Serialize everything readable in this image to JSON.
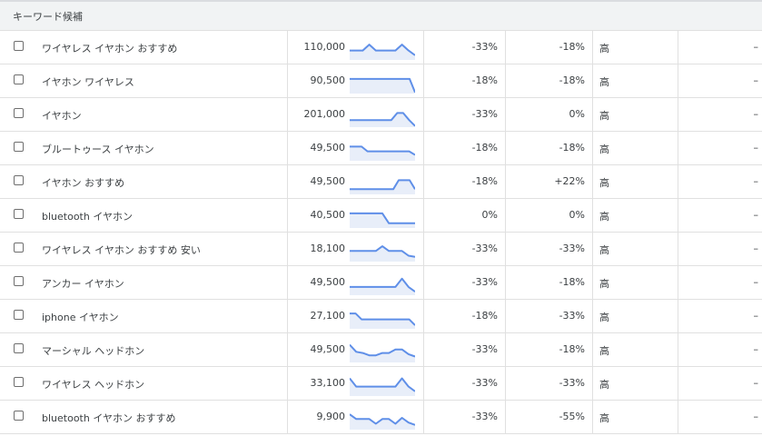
{
  "header": {
    "title": "キーワード候補"
  },
  "colors": {
    "spark_line": "#5f8fe8",
    "spark_fill": "#e8eef9"
  },
  "rows": [
    {
      "keyword": "ワイヤレス イヤホン おすすめ",
      "volume": "110,000",
      "trend": [
        60,
        60,
        60,
        35,
        60,
        60,
        60,
        60,
        35,
        60,
        80
      ],
      "change_3m": "-33%",
      "change_yoy": "-18%",
      "competition": "高",
      "extra": "–"
    },
    {
      "keyword": "イヤホン ワイヤレス",
      "volume": "90,500",
      "trend": [
        38,
        38,
        38,
        38,
        38,
        38,
        38,
        38,
        38,
        38,
        38,
        38,
        95
      ],
      "change_3m": "-18%",
      "change_yoy": "-18%",
      "competition": "高",
      "extra": "–"
    },
    {
      "keyword": "イヤホン",
      "volume": "201,000",
      "trend": [
        70,
        70,
        70,
        70,
        70,
        70,
        70,
        70,
        40,
        40,
        70,
        95
      ],
      "change_3m": "-33%",
      "change_yoy": "0%",
      "competition": "高",
      "extra": "–"
    },
    {
      "keyword": "ブルートゥース イヤホン",
      "volume": "49,500",
      "trend": [
        40,
        40,
        40,
        60,
        60,
        60,
        60,
        60,
        60,
        60,
        60,
        75
      ],
      "change_3m": "-18%",
      "change_yoy": "-18%",
      "competition": "高",
      "extra": "–"
    },
    {
      "keyword": "イヤホン おすすめ",
      "volume": "49,500",
      "trend": [
        78,
        78,
        78,
        78,
        78,
        78,
        78,
        78,
        78,
        40,
        40,
        40,
        78
      ],
      "change_3m": "-18%",
      "change_yoy": "+22%",
      "competition": "高",
      "extra": "–"
    },
    {
      "keyword": "bluetooth イヤホン",
      "volume": "40,500",
      "trend": [
        38,
        38,
        38,
        38,
        38,
        38,
        80,
        80,
        80,
        80,
        80
      ],
      "change_3m": "0%",
      "change_yoy": "0%",
      "competition": "高",
      "extra": "–"
    },
    {
      "keyword": "ワイヤレス イヤホン おすすめ 安い",
      "volume": "18,100",
      "trend": [
        55,
        55,
        55,
        55,
        55,
        35,
        55,
        55,
        55,
        75,
        80
      ],
      "change_3m": "-33%",
      "change_yoy": "-33%",
      "competition": "高",
      "extra": "–"
    },
    {
      "keyword": "アンカー イヤホン",
      "volume": "49,500",
      "trend": [
        65,
        65,
        65,
        65,
        65,
        65,
        65,
        65,
        30,
        65,
        85
      ],
      "change_3m": "-33%",
      "change_yoy": "-18%",
      "competition": "高",
      "extra": "–"
    },
    {
      "keyword": "iphone イヤホン",
      "volume": "27,100",
      "trend": [
        35,
        35,
        60,
        60,
        60,
        60,
        60,
        60,
        60,
        60,
        60,
        85
      ],
      "change_3m": "-18%",
      "change_yoy": "-33%",
      "competition": "高",
      "extra": "–"
    },
    {
      "keyword": "マーシャル ヘッドホン",
      "volume": "49,500",
      "trend": [
        25,
        55,
        60,
        70,
        70,
        60,
        60,
        45,
        45,
        65,
        75
      ],
      "change_3m": "-33%",
      "change_yoy": "-18%",
      "competition": "高",
      "extra": "–"
    },
    {
      "keyword": "ワイヤレス ヘッドホン",
      "volume": "33,100",
      "trend": [
        25,
        60,
        60,
        60,
        60,
        60,
        60,
        60,
        25,
        60,
        80
      ],
      "change_3m": "-33%",
      "change_yoy": "-33%",
      "competition": "高",
      "extra": "–"
    },
    {
      "keyword": "bluetooth イヤホン おすすめ",
      "volume": "9,900",
      "trend": [
        35,
        55,
        55,
        55,
        75,
        55,
        55,
        75,
        50,
        70,
        80
      ],
      "change_3m": "-33%",
      "change_yoy": "-55%",
      "competition": "高",
      "extra": "–"
    }
  ]
}
